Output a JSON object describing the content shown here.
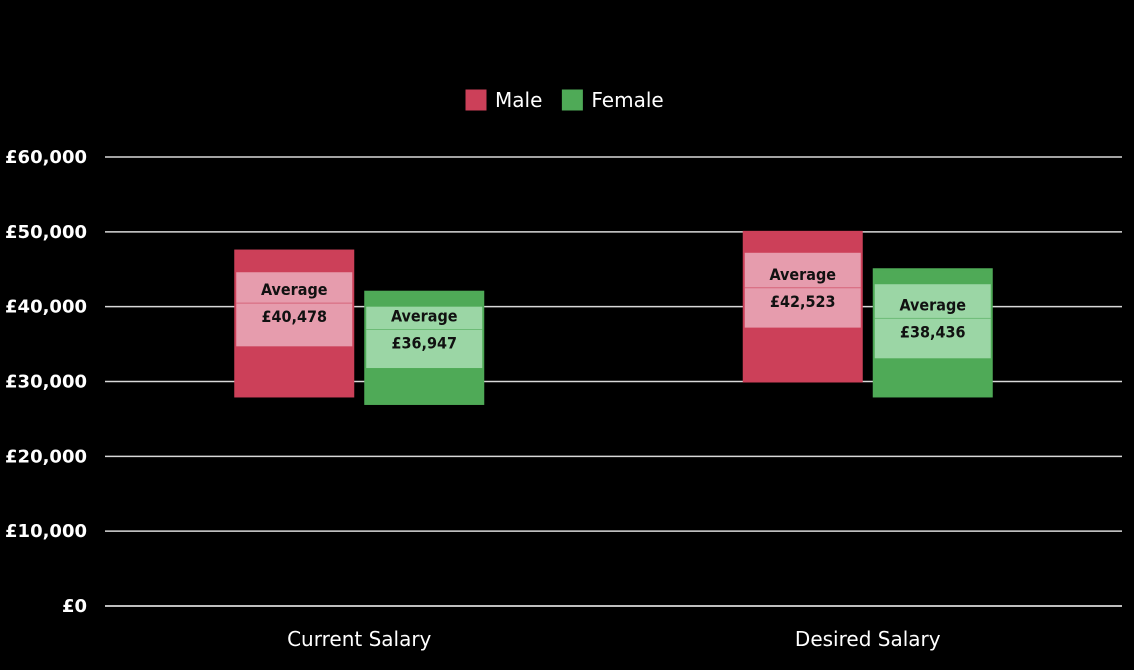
{
  "chart_data": {
    "type": "bar",
    "categories": [
      "Current Salary",
      "Desired Salary"
    ],
    "ylim": [
      0,
      60000
    ],
    "yticks": [
      0,
      10000,
      20000,
      30000,
      40000,
      50000,
      60000
    ],
    "ytick_labels": [
      "£0",
      "£10,000",
      "£20,000",
      "£30,000",
      "£40,000",
      "£50,000",
      "£60,000"
    ],
    "grid": true,
    "legend_position": "top-center",
    "average_label": "Average",
    "series": [
      {
        "name": "Male",
        "color": "#cc4059",
        "mid_color": "#e69cad",
        "ranges": [
          {
            "low": 28000,
            "q1": 34700,
            "q3": 44600,
            "high": 47500,
            "average": 40478,
            "average_label": "£40,478"
          },
          {
            "low": 30000,
            "q1": 37200,
            "q3": 47200,
            "high": 50000,
            "average": 42523,
            "average_label": "£42,523"
          }
        ]
      },
      {
        "name": "Female",
        "color": "#4faa57",
        "mid_color": "#9bd6a5",
        "ranges": [
          {
            "low": 27000,
            "q1": 31800,
            "q3": 40000,
            "high": 42000,
            "average": 36947,
            "average_label": "£36,947"
          },
          {
            "low": 28000,
            "q1": 33100,
            "q3": 43000,
            "high": 45000,
            "average": 38436,
            "average_label": "£38,436"
          }
        ]
      }
    ]
  }
}
